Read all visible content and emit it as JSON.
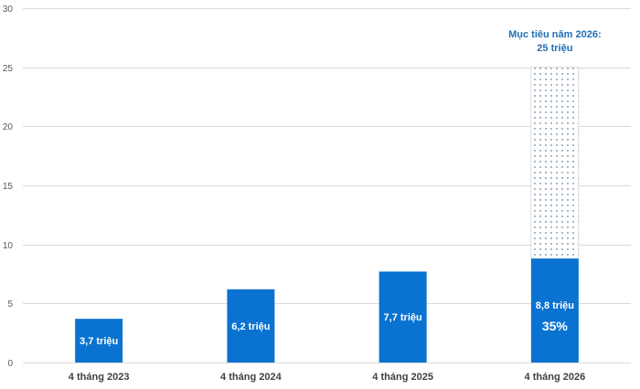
{
  "chart_data": {
    "type": "bar",
    "categories": [
      "4 tháng 2023",
      "4 tháng 2024",
      "4 tháng 2025",
      "4 tháng 2026"
    ],
    "values": [
      3.7,
      6.2,
      7.7,
      8.8
    ],
    "data_labels": [
      "3,7 triệu",
      "6,2 triệu",
      "7,7 triệu",
      "8,8 triệu"
    ],
    "target": {
      "category": "4 tháng 2026",
      "value": 25,
      "label_line1": "Mục tiêu năm 2026:",
      "label_line2": "25 triệu",
      "percent_label": "35%"
    },
    "ylim": [
      0,
      30
    ],
    "yticks": [
      0,
      5,
      10,
      15,
      20,
      25,
      30
    ],
    "grid": true,
    "colors": {
      "bar": "#0a73d1",
      "target_text": "#1f6fb5",
      "grid": "#d9d9d9",
      "target_dots": "#1f4e79"
    }
  }
}
